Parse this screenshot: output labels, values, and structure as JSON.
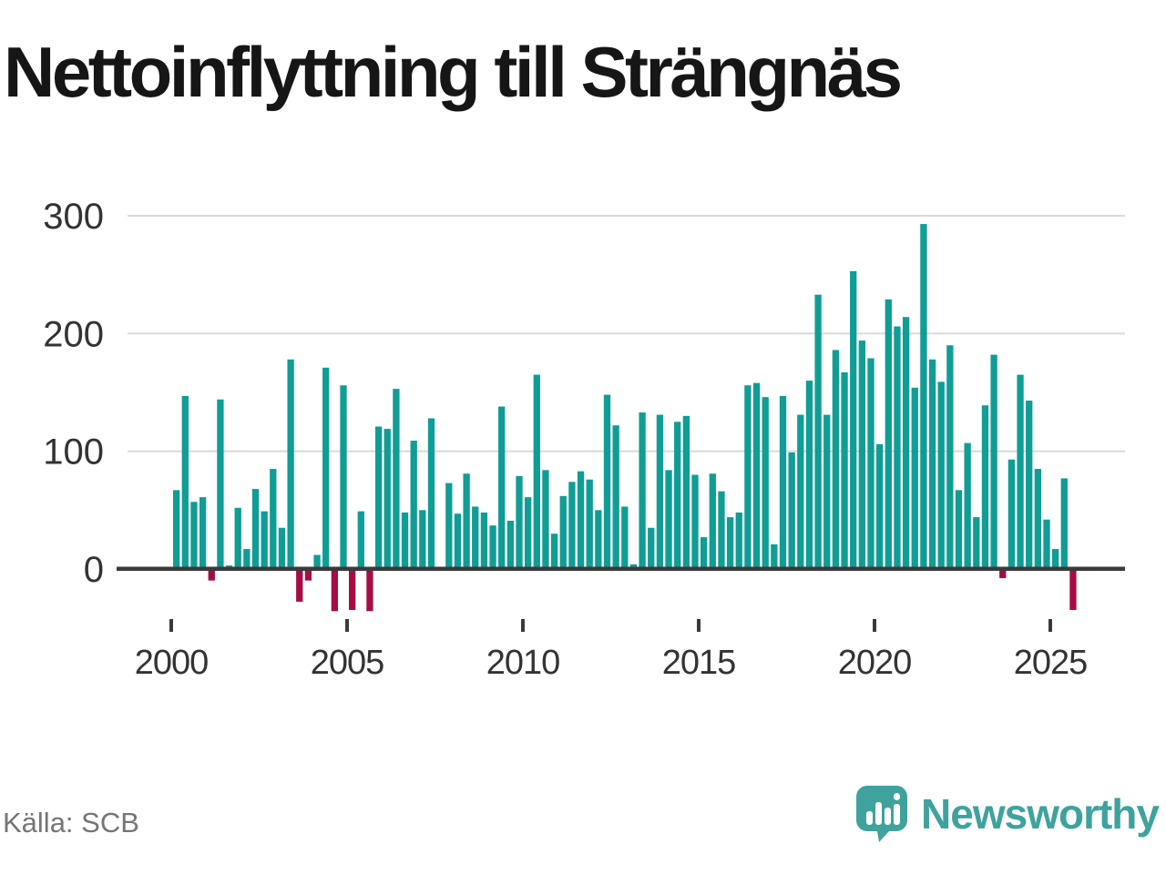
{
  "title": "Nettoinflyttning till Strängnäs",
  "source": "Källa: SCB",
  "logo": {
    "text": "Newsworthy",
    "icon": "speech-bubble-bar-chart"
  },
  "colors": {
    "bar_positive": "#0f9d95",
    "bar_negative": "#a50d45",
    "gridline": "#d9d9d9",
    "axis_line": "#3a3a3a",
    "axis_text": "#333333",
    "title_text": "#161616",
    "source_text": "#757575",
    "logo_teal": "#3fa29d"
  },
  "chart_data": {
    "type": "bar",
    "title": "Nettoinflyttning till Strängnäs",
    "x_unit": "quarter",
    "first_period": "2000 Q1",
    "last_period": "2025 Q3",
    "values": [
      67,
      147,
      57,
      61,
      -9,
      144,
      3,
      52,
      17,
      68,
      49,
      85,
      35,
      178,
      -27,
      -9,
      12,
      171,
      -35,
      156,
      -34,
      49,
      -35,
      121,
      119,
      153,
      48,
      109,
      50,
      128,
      0,
      73,
      47,
      81,
      53,
      48,
      37,
      138,
      41,
      79,
      61,
      165,
      84,
      30,
      62,
      74,
      83,
      76,
      50,
      148,
      122,
      53,
      4,
      133,
      35,
      131,
      84,
      125,
      130,
      80,
      27,
      81,
      66,
      44,
      48,
      156,
      158,
      146,
      21,
      147,
      99,
      131,
      160,
      233,
      131,
      186,
      167,
      253,
      194,
      179,
      106,
      229,
      206,
      214,
      154,
      293,
      178,
      159,
      190,
      67,
      107,
      44,
      139,
      182,
      -7,
      93,
      165,
      143,
      85,
      42,
      17,
      77,
      -34
    ],
    "yticks": [
      0,
      100,
      200,
      300
    ],
    "xtick_years": [
      2000,
      2005,
      2010,
      2015,
      2020,
      2025
    ],
    "ylim": [
      -50,
      320
    ],
    "grid": "horizontal",
    "legend": "none",
    "xlabel": "",
    "ylabel": ""
  }
}
